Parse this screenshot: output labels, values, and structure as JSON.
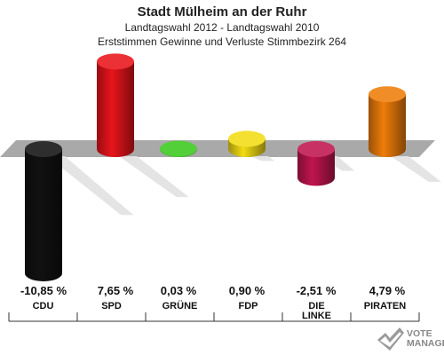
{
  "header": {
    "title": "Stadt Mülheim an der Ruhr",
    "subtitle": "Landtagswahl 2012 - Landtagswahl 2010",
    "description": "Erststimmen Gewinne und Verluste Stimmbezirk 264"
  },
  "chart_data": {
    "type": "bar",
    "title": "Stadt Mülheim an der Ruhr",
    "subtitle": "Landtagswahl 2012 - Landtagswahl 2010",
    "categories": [
      "CDU",
      "SPD",
      "GRÜNE",
      "FDP",
      "DIE LINKE",
      "PIRATEN"
    ],
    "values": [
      -10.85,
      7.65,
      0.03,
      0.9,
      -2.51,
      4.79
    ],
    "value_labels": [
      "-10,85 %",
      "7,65 %",
      "0,03 %",
      "0,90 %",
      "-2,51 %",
      "4,79 %"
    ],
    "colors": [
      "#111111",
      "#e8141b",
      "#3cc81e",
      "#f2dc14",
      "#c0154e",
      "#ef7d0a"
    ],
    "unit": "%",
    "ylim": [
      -12,
      9
    ],
    "grid": false,
    "legend": "none"
  },
  "logo": {
    "line1": "VOTE",
    "line2": "MANAGER"
  }
}
